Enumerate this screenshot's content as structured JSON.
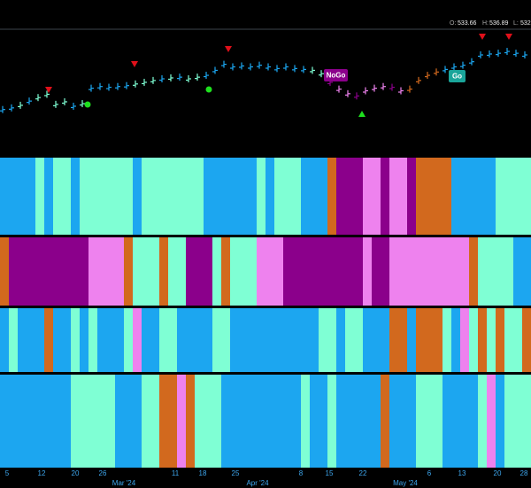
{
  "chart_data": {
    "type": "ohlc",
    "header": {
      "open_label": "O:",
      "open": "533.66",
      "high_label": "H:",
      "high": "536.89",
      "low_label": "L:",
      "low": "532"
    },
    "annotations": [
      "NoGo",
      "Go"
    ],
    "ylim": [
      480,
      545
    ],
    "palette": {
      "B": "#1ca6f0",
      "G": "#7fffd4",
      "P": "#8b008b",
      "K": "#ee82ee",
      "O": "#d2691e"
    },
    "values": [
      502.3,
      503.2,
      504.6,
      506.9,
      508.8,
      510.6,
      505.1,
      506.5,
      504.1,
      505.5,
      513.9,
      514.8,
      514.4,
      514.8,
      515.3,
      516.2,
      517.1,
      518.1,
      519.0,
      519.5,
      519.9,
      519.0,
      519.9,
      520.9,
      523.6,
      526.9,
      525.5,
      526.0,
      525.5,
      526.4,
      525.5,
      524.6,
      525.5,
      524.6,
      524.1,
      523.6,
      521.8,
      517.1,
      513.4,
      510.9,
      509.7,
      512.5,
      513.9,
      514.8,
      514.4,
      512.5,
      513.4,
      518.1,
      520.9,
      522.7,
      524.1,
      525.5,
      526.4,
      528.3,
      532.0,
      532.5,
      532.9,
      533.9,
      532.9,
      532.0
    ],
    "bar_colors": "BBGBGGGGBGBBBBBGGGBGBGGBBBBBBBBBBBBGGPKKPKKKPKOOOOBBBBBBBBBB",
    "bands": [
      "BBBBGBGGBGGGGGGBGGGGGGGBBBBBBGBGGGBBBOPPPKKPKKPOOOOBBBBBGGGG",
      "OPPPPPPPPPKKKKOGGGOGGPPPGOGGGKKKPPPPPPPPPKPPKKKKKKKKKOGGGGBB",
      "BGBBBOBBGBGBBBGKBBGGBBBBGGBBBBBBBBBBGGBGGBBBOOBOOOGBKGOGOGGO",
      "BBBBBBBBGGGGGBBBGGOOKOGGGBBBBBBBBBGBBGBBBBBOBBBGGGBBBBGKBGGG"
    ],
    "x_labels": [
      "5",
      "12",
      "20",
      "26",
      "11",
      "18",
      "25",
      "8",
      "15",
      "22",
      "6",
      "13",
      "20",
      "28"
    ],
    "month_labels": [
      "Mar '24",
      "Apr '24",
      "May '24"
    ]
  }
}
